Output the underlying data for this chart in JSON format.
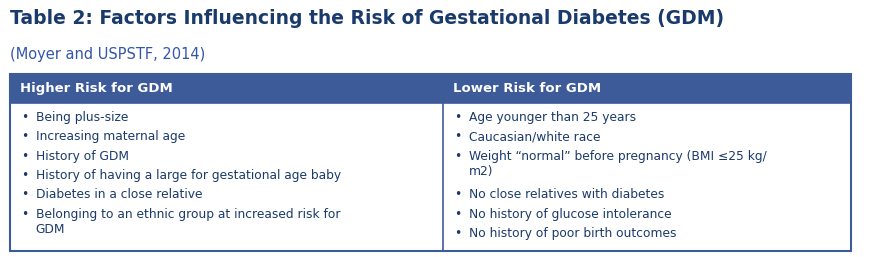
{
  "title": "Table 2: Factors Influencing the Risk of Gestational Diabetes (GDM)",
  "subtitle": "(Moyer and USPSTF, 2014)",
  "header_bg_color": "#3d5a99",
  "header_text_color": "#ffffff",
  "title_color": "#1a3a6b",
  "subtitle_color": "#3355aa",
  "table_border_color": "#3d5a99",
  "cell_bg_color": "#ffffff",
  "outer_bg_color": "#ffffff",
  "body_text_color": "#1a3a6b",
  "col1_header": "Higher Risk for GDM",
  "col2_header": "Lower Risk for GDM",
  "col1_items": [
    "Being plus-size",
    "Increasing maternal age",
    "History of GDM",
    "History of having a large for gestational age baby",
    "Diabetes in a close relative",
    "Belonging to an ethnic group at increased risk for\nGDM"
  ],
  "col2_items": [
    "Age younger than 25 years",
    "Caucasian/white race",
    "Weight “normal” before pregnancy (BMI ≤25 kg/\nm2)",
    "No close relatives with diabetes",
    "No history of glucose intolerance",
    "No history of poor birth outcomes"
  ],
  "col_split": 0.515,
  "figsize": [
    8.91,
    2.57
  ],
  "dpi": 100,
  "title_fontsize": 13.5,
  "subtitle_fontsize": 10.5,
  "header_fontsize": 9.5,
  "body_fontsize": 8.8
}
